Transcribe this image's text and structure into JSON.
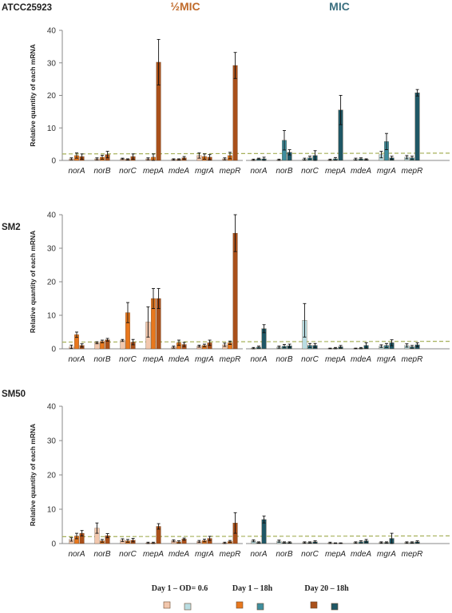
{
  "chart_data": {
    "type": "bar",
    "header_half_mic": "½MIC",
    "header_mic": "MIC",
    "header_colors": {
      "half_mic": "#c06a2a",
      "mic": "#3a6f7f"
    },
    "ylabel": "Relative quantity of each mRNA",
    "ylim": [
      0,
      40
    ],
    "yticks": [
      "0",
      "10",
      "20",
      "30",
      "40"
    ],
    "threshold": 2,
    "threshold_color": "#a6b05a",
    "categories": [
      "norA",
      "norB",
      "norC",
      "mepA",
      "mdeA",
      "mgrA",
      "mepR"
    ],
    "legend": [
      {
        "label": "Day 1 – OD= 0.6",
        "colors": [
          "#f2c7ad",
          "#b9dde2"
        ]
      },
      {
        "label": "Day 1 – 18h",
        "colors": [
          "#e8781e",
          "#3f8e9e"
        ]
      },
      {
        "label": "Day 20 – 18h",
        "colors": [
          "#a9501a",
          "#1f5765"
        ]
      }
    ],
    "panels": [
      {
        "strain": "ATCC25923",
        "half_mic": [
          {
            "series": "Day 1 – OD= 0.6",
            "values": [
              0.5,
              0.5,
              0.5,
              0.5,
              0.3,
              1.5,
              0.5
            ],
            "errors": [
              0.3,
              0.3,
              0.2,
              0.3,
              0.2,
              0.8,
              0.3
            ]
          },
          {
            "series": "Day 1 – 18h",
            "values": [
              1.5,
              1.0,
              0.3,
              1.0,
              0.3,
              1.2,
              1.5
            ],
            "errors": [
              0.8,
              0.6,
              0.2,
              1.0,
              0.2,
              0.8,
              1.0
            ]
          },
          {
            "series": "Day 20 – 18h",
            "values": [
              1.2,
              1.8,
              1.2,
              30.2,
              0.8,
              1.0,
              29.2
            ],
            "errors": [
              0.8,
              1.0,
              0.8,
              7.0,
              0.4,
              0.8,
              4.0
            ]
          }
        ],
        "mic": [
          {
            "series": "Day 1 – OD= 0.6",
            "values": [
              0.2,
              0.2,
              0.4,
              0.2,
              0.4,
              1.8,
              1.0
            ],
            "errors": [
              0.2,
              0.2,
              0.3,
              0.2,
              0.3,
              1.0,
              0.5
            ]
          },
          {
            "series": "Day 1 – 18h",
            "values": [
              0.5,
              6.2,
              0.8,
              0.5,
              0.5,
              5.8,
              0.8
            ],
            "errors": [
              0.2,
              3.0,
              0.5,
              0.4,
              0.3,
              2.5,
              0.5
            ]
          },
          {
            "series": "Day 20 – 18h",
            "values": [
              0.5,
              2.5,
              1.5,
              15.5,
              0.3,
              0.8,
              20.8
            ],
            "errors": [
              0.5,
              0.8,
              1.5,
              4.5,
              0.2,
              0.5,
              1.0
            ]
          }
        ]
      },
      {
        "strain": "SM2",
        "half_mic": [
          {
            "series": "Day 1 – OD= 0.6",
            "values": [
              0.6,
              1.8,
              2.5,
              8.0,
              0.5,
              0.8,
              1.2
            ],
            "errors": [
              0.5,
              0.3,
              0.3,
              4.5,
              0.3,
              0.3,
              0.5
            ]
          },
          {
            "series": "Day 1 – 18h",
            "values": [
              4.2,
              2.2,
              10.8,
              15.0,
              1.8,
              1.0,
              1.8
            ],
            "errors": [
              0.8,
              0.4,
              3.0,
              3.0,
              0.8,
              0.4,
              0.5
            ]
          },
          {
            "series": "Day 20 – 18h",
            "values": [
              1.0,
              2.7,
              2.0,
              15.0,
              1.3,
              1.8,
              34.5
            ],
            "errors": [
              0.5,
              0.4,
              0.8,
              3.0,
              0.6,
              0.8,
              5.5
            ]
          }
        ],
        "mic": [
          {
            "series": "Day 1 – OD= 0.6",
            "values": [
              0.2,
              0.5,
              8.5,
              0.1,
              0.1,
              0.8,
              1.0
            ],
            "errors": [
              0.2,
              0.3,
              5.0,
              0.1,
              0.1,
              0.4,
              0.5
            ]
          },
          {
            "series": "Day 1 – 18h",
            "values": [
              0.5,
              0.8,
              1.0,
              0.2,
              0.2,
              1.0,
              0.6
            ],
            "errors": [
              0.3,
              0.5,
              0.6,
              0.2,
              0.2,
              0.6,
              0.4
            ]
          },
          {
            "series": "Day 20 – 18h",
            "values": [
              6.0,
              0.9,
              1.0,
              0.6,
              1.0,
              1.8,
              1.2
            ],
            "errors": [
              1.2,
              0.5,
              0.6,
              0.4,
              0.8,
              0.9,
              0.6
            ]
          }
        ]
      },
      {
        "strain": "SM50",
        "half_mic": [
          {
            "series": "Day 1 – OD= 0.6",
            "values": [
              1.2,
              4.5,
              1.0,
              0.2,
              0.8,
              0.6,
              0.2
            ],
            "errors": [
              0.5,
              1.5,
              0.4,
              0.2,
              0.3,
              0.3,
              0.2
            ]
          },
          {
            "series": "Day 1 – 18h",
            "values": [
              2.2,
              0.8,
              0.8,
              0.2,
              0.5,
              0.9,
              0.6
            ],
            "errors": [
              0.8,
              0.4,
              0.4,
              0.2,
              0.3,
              0.4,
              0.3
            ]
          },
          {
            "series": "Day 20 – 18h",
            "values": [
              3.0,
              2.3,
              1.0,
              5.0,
              1.3,
              1.5,
              6.0
            ],
            "errors": [
              0.8,
              0.6,
              0.5,
              0.8,
              0.3,
              0.6,
              3.0
            ]
          }
        ],
        "mic": [
          {
            "series": "Day 1 – OD= 0.6",
            "values": [
              0.8,
              0.7,
              0.3,
              0.2,
              0.3,
              0.3,
              0.3
            ],
            "errors": [
              0.3,
              0.3,
              0.2,
              0.2,
              0.2,
              0.2,
              0.2
            ]
          },
          {
            "series": "Day 1 – 18h",
            "values": [
              0.3,
              0.3,
              0.3,
              0.1,
              0.5,
              0.3,
              0.3
            ],
            "errors": [
              0.2,
              0.2,
              0.2,
              0.1,
              0.3,
              0.2,
              0.2
            ]
          },
          {
            "series": "Day 20 – 18h",
            "values": [
              7.0,
              0.3,
              0.5,
              0.1,
              0.8,
              1.5,
              0.5
            ],
            "errors": [
              1.0,
              0.2,
              0.3,
              0.1,
              0.4,
              1.5,
              0.3
            ]
          }
        ]
      }
    ]
  }
}
